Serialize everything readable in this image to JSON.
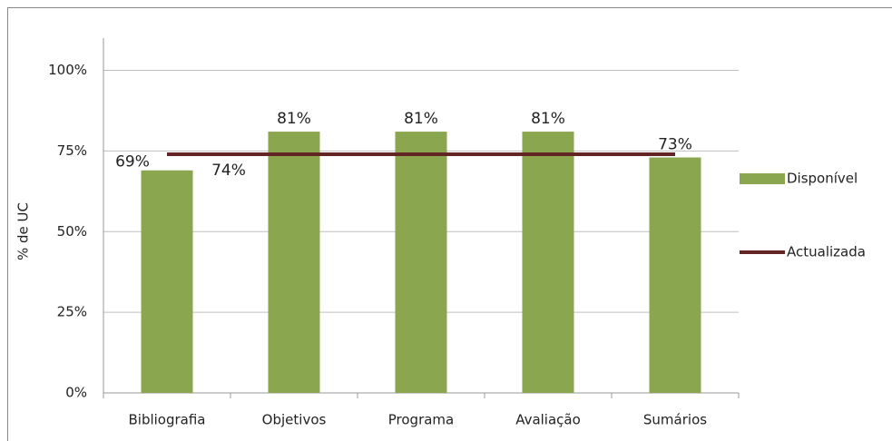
{
  "chart_data": {
    "type": "bar",
    "y_label": "% de UC",
    "categories": [
      "Bibliografia",
      "Objetivos",
      "Programa",
      "Avaliação",
      "Sumários"
    ],
    "series": [
      {
        "name": "Disponível",
        "type": "bar",
        "color": "#8aa64e",
        "values": [
          69,
          81,
          81,
          81,
          73
        ],
        "value_labels": [
          "69%",
          "81%",
          "81%",
          "81%",
          "73%"
        ]
      },
      {
        "name": "Actualizada",
        "type": "line",
        "color": "#632523",
        "values": [
          74,
          74,
          74,
          74,
          74
        ],
        "value_labels": [
          "74%",
          null,
          null,
          null,
          null
        ]
      }
    ],
    "ylim": [
      0,
      110
    ],
    "yticks": [
      {
        "value": 0,
        "label": "0%"
      },
      {
        "value": 25,
        "label": "25%"
      },
      {
        "value": 50,
        "label": "50%"
      },
      {
        "value": 75,
        "label": "75%"
      },
      {
        "value": 100,
        "label": "100%"
      }
    ],
    "grid": true,
    "legend": "right"
  }
}
